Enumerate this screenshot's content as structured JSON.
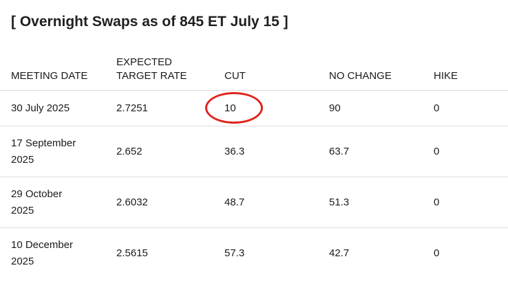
{
  "title": "[ Overnight Swaps as of 845 ET July 15 ]",
  "table": {
    "headers": {
      "meeting_date": "MEETING DATE",
      "expected_line1": "EXPECTED",
      "expected_line2": "TARGET RATE",
      "cut": "CUT",
      "no_change": "NO CHANGE",
      "hike": "HIKE"
    },
    "rows": [
      {
        "date_line1": "30 July 2025",
        "date_line2": "",
        "rate": "2.7251",
        "cut": "10",
        "no_change": "90",
        "hike": "0"
      },
      {
        "date_line1": "17 September",
        "date_line2": "2025",
        "rate": "2.652",
        "cut": "36.3",
        "no_change": "63.7",
        "hike": "0"
      },
      {
        "date_line1": "29 October",
        "date_line2": "2025",
        "rate": "2.6032",
        "cut": "48.7",
        "no_change": "51.3",
        "hike": "0"
      },
      {
        "date_line1": "10 December",
        "date_line2": "2025",
        "rate": "2.5615",
        "cut": "57.3",
        "no_change": "42.7",
        "hike": "0"
      }
    ]
  },
  "colors": {
    "highlight_ring": "#e0241c",
    "divider": "#dcdcdc"
  }
}
